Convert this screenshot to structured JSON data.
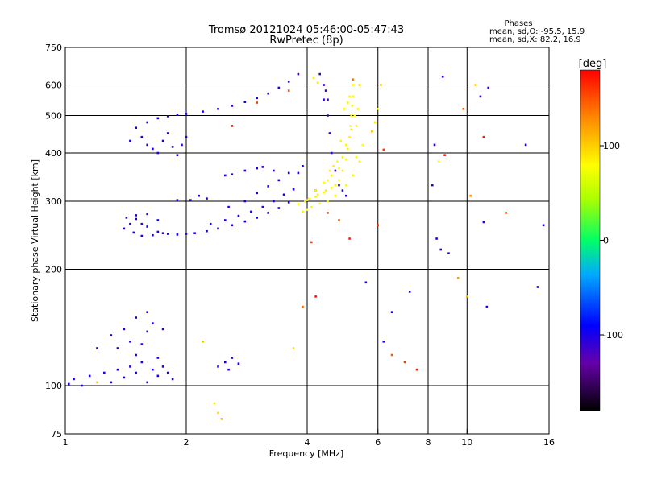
{
  "chart_data": {
    "type": "scatter",
    "title_line1": "Tromsø 20121024 05:46:00-05:47:43",
    "title_line2": "RwPretec (8p)",
    "stats": {
      "heading": "Phases",
      "line_o": "mean, sd,O: -95.5, 15.9",
      "line_x": "mean, sd,X:  82.2, 16.9"
    },
    "xlabel": "Frequency [MHz]",
    "ylabel": "Stationary phase Virtual Height [km]",
    "xscale": "log",
    "yscale": "log",
    "xlim": [
      1,
      16
    ],
    "ylim": [
      75,
      750
    ],
    "x_ticks": [
      1,
      2,
      4,
      6,
      8,
      10,
      16
    ],
    "x_tick_labels": [
      "1",
      "2",
      "4",
      "6",
      "8",
      "10",
      "16"
    ],
    "x_grid": [
      2,
      4,
      6,
      8,
      10
    ],
    "y_ticks": [
      75,
      100,
      200,
      300,
      400,
      500,
      600,
      750
    ],
    "y_tick_labels": [
      "75",
      "100",
      "200",
      "300",
      "400",
      "500",
      "600",
      "750"
    ],
    "y_grid": [
      100,
      200,
      300,
      400,
      500,
      600
    ],
    "colorbar": {
      "label": "[deg]",
      "range": [
        -180,
        180
      ],
      "ticks": [
        100,
        0,
        -100
      ],
      "tick_labels": [
        "100",
        "0",
        "-100"
      ]
    },
    "series": [
      {
        "mode": "O",
        "points": [
          [
            1.4,
            255,
            -100
          ],
          [
            1.45,
            262,
            -105
          ],
          [
            1.5,
            270,
            -98
          ],
          [
            1.55,
            262,
            -110
          ],
          [
            1.6,
            258,
            -95
          ],
          [
            1.7,
            250,
            -102
          ],
          [
            1.8,
            247,
            -100
          ],
          [
            1.9,
            246,
            -96
          ],
          [
            2.0,
            247,
            -104
          ],
          [
            2.1,
            248,
            -100
          ],
          [
            2.25,
            251,
            -98
          ],
          [
            2.4,
            255,
            -102
          ],
          [
            2.6,
            260,
            -100
          ],
          [
            2.8,
            266,
            -96
          ],
          [
            3.0,
            272,
            -92
          ],
          [
            3.2,
            280,
            -100
          ],
          [
            3.4,
            288,
            -95
          ],
          [
            3.6,
            298,
            -98
          ],
          [
            1.42,
            272,
            -110
          ],
          [
            1.5,
            276,
            -102
          ],
          [
            1.6,
            278,
            -98
          ],
          [
            1.7,
            268,
            -94
          ],
          [
            1.48,
            249,
            -96
          ],
          [
            1.55,
            244,
            -100
          ],
          [
            1.65,
            245,
            -102
          ],
          [
            1.75,
            248,
            -108
          ],
          [
            2.3,
            262,
            -92
          ],
          [
            2.5,
            268,
            -100
          ],
          [
            2.7,
            275,
            -104
          ],
          [
            2.9,
            282,
            -98
          ],
          [
            3.1,
            290,
            -110
          ],
          [
            3.3,
            300,
            -102
          ],
          [
            3.5,
            312,
            -100
          ],
          [
            3.7,
            322,
            -104
          ],
          [
            2.55,
            290,
            -98
          ],
          [
            2.8,
            300,
            -100
          ],
          [
            3.0,
            315,
            -102
          ],
          [
            3.2,
            328,
            -104
          ],
          [
            3.4,
            340,
            -100
          ],
          [
            3.6,
            355,
            -98
          ],
          [
            2.5,
            350,
            -100
          ],
          [
            2.6,
            352,
            -105
          ],
          [
            2.8,
            360,
            -100
          ],
          [
            3.0,
            365,
            -98
          ],
          [
            3.1,
            368,
            -102
          ],
          [
            3.3,
            360,
            -100
          ],
          [
            1.6,
            480,
            -100
          ],
          [
            1.7,
            492,
            -102
          ],
          [
            1.8,
            498,
            -98
          ],
          [
            1.9,
            502,
            -100
          ],
          [
            2.0,
            505,
            -104
          ],
          [
            2.2,
            512,
            -100
          ],
          [
            2.4,
            520,
            -98
          ],
          [
            2.6,
            530,
            -102
          ],
          [
            2.8,
            542,
            -100
          ],
          [
            3.0,
            555,
            -100
          ],
          [
            3.2,
            570,
            -102
          ],
          [
            3.4,
            590,
            -104
          ],
          [
            3.6,
            612,
            -110
          ],
          [
            3.8,
            640,
            -115
          ],
          [
            1.5,
            465,
            -100
          ],
          [
            1.55,
            440,
            -102
          ],
          [
            1.6,
            420,
            -98
          ],
          [
            1.65,
            410,
            -100
          ],
          [
            1.7,
            400,
            -104
          ],
          [
            1.75,
            430,
            -96
          ],
          [
            1.8,
            450,
            -100
          ],
          [
            1.85,
            415,
            -102
          ],
          [
            1.9,
            395,
            -100
          ],
          [
            1.95,
            420,
            -104
          ],
          [
            2.0,
            440,
            -98
          ],
          [
            1.45,
            430,
            -96
          ],
          [
            4.3,
            640,
            -110
          ],
          [
            4.4,
            600,
            -112
          ],
          [
            4.5,
            550,
            -110
          ],
          [
            4.5,
            500,
            -108
          ],
          [
            4.55,
            450,
            -106
          ],
          [
            4.6,
            400,
            -104
          ],
          [
            4.7,
            360,
            -110
          ],
          [
            4.8,
            330,
            -112
          ],
          [
            4.9,
            320,
            -108
          ],
          [
            5.0,
            310,
            -106
          ],
          [
            4.4,
            550,
            -110
          ],
          [
            4.45,
            580,
            -112
          ],
          [
            1.3,
            135,
            -100
          ],
          [
            1.35,
            125,
            -102
          ],
          [
            1.4,
            140,
            -98
          ],
          [
            1.45,
            130,
            -100
          ],
          [
            1.5,
            120,
            -104
          ],
          [
            1.55,
            128,
            -100
          ],
          [
            1.6,
            138,
            -98
          ],
          [
            1.65,
            145,
            -100
          ],
          [
            1.7,
            118,
            -102
          ],
          [
            1.35,
            110,
            -100
          ],
          [
            1.4,
            105,
            -98
          ],
          [
            1.45,
            112,
            -100
          ],
          [
            1.5,
            108,
            -96
          ],
          [
            1.55,
            115,
            -100
          ],
          [
            1.6,
            102,
            -104
          ],
          [
            1.65,
            110,
            -100
          ],
          [
            1.7,
            106,
            -98
          ],
          [
            1.75,
            112,
            -102
          ],
          [
            1.8,
            108,
            -100
          ],
          [
            1.85,
            104,
            -98
          ],
          [
            1.3,
            102,
            -100
          ],
          [
            1.25,
            108,
            -104
          ],
          [
            1.05,
            104,
            -100
          ],
          [
            1.1,
            100,
            -98
          ],
          [
            1.15,
            106,
            -102
          ],
          [
            1.02,
            101,
            -100
          ],
          [
            2.4,
            112,
            -100
          ],
          [
            2.5,
            115,
            -98
          ],
          [
            2.6,
            118,
            -102
          ],
          [
            2.7,
            114,
            -100
          ],
          [
            2.55,
            110,
            -104
          ],
          [
            1.5,
            150,
            -100
          ],
          [
            1.6,
            155,
            -98
          ],
          [
            1.75,
            140,
            -102
          ],
          [
            1.2,
            125,
            -100
          ],
          [
            6.2,
            130,
            -100
          ],
          [
            6.5,
            155,
            -102
          ],
          [
            7.2,
            175,
            -98
          ],
          [
            8.3,
            420,
            -100
          ],
          [
            8.2,
            330,
            -104
          ],
          [
            8.4,
            240,
            -100
          ],
          [
            8.6,
            225,
            -98
          ],
          [
            9.0,
            220,
            -102
          ],
          [
            11.0,
            265,
            -100
          ],
          [
            11.2,
            160,
            -104
          ],
          [
            14.0,
            420,
            -100
          ],
          [
            15.0,
            180,
            -98
          ],
          [
            15.5,
            260,
            -102
          ],
          [
            8.7,
            630,
            -100
          ],
          [
            10.8,
            560,
            -106
          ],
          [
            11.3,
            590,
            -104
          ],
          [
            5.6,
            185,
            -100
          ],
          [
            4.2,
            320,
            -104
          ],
          [
            2.05,
            302,
            -96
          ],
          [
            1.9,
            302,
            -102
          ],
          [
            2.15,
            310,
            -100
          ],
          [
            2.25,
            305,
            -98
          ],
          [
            3.8,
            355,
            -100
          ],
          [
            3.9,
            370,
            -96
          ]
        ]
      },
      {
        "mode": "X",
        "points": [
          [
            3.8,
            295,
            80
          ],
          [
            4.0,
            302,
            82
          ],
          [
            4.2,
            308,
            85
          ],
          [
            4.4,
            316,
            80
          ],
          [
            4.6,
            325,
            78
          ],
          [
            4.8,
            340,
            82
          ],
          [
            4.9,
            360,
            85
          ],
          [
            5.0,
            385,
            80
          ],
          [
            5.05,
            410,
            82
          ],
          [
            5.1,
            440,
            84
          ],
          [
            5.12,
            470,
            80
          ],
          [
            5.15,
            500,
            82
          ],
          [
            5.18,
            530,
            84
          ],
          [
            5.2,
            560,
            80
          ],
          [
            5.2,
            600,
            82
          ],
          [
            4.2,
            320,
            80
          ],
          [
            4.4,
            335,
            82
          ],
          [
            4.6,
            350,
            84
          ],
          [
            4.8,
            365,
            80
          ],
          [
            4.9,
            390,
            85
          ],
          [
            5.0,
            420,
            82
          ],
          [
            4.5,
            340,
            80
          ],
          [
            4.7,
            330,
            84
          ],
          [
            5.1,
            560,
            82
          ],
          [
            5.3,
            470,
            86
          ],
          [
            5.4,
            600,
            90
          ],
          [
            4.1,
            290,
            80
          ],
          [
            4.0,
            285,
            82
          ],
          [
            3.9,
            282,
            84
          ],
          [
            4.3,
            296,
            80
          ],
          [
            4.5,
            300,
            82
          ],
          [
            4.7,
            310,
            85
          ],
          [
            5.0,
            330,
            80
          ],
          [
            5.2,
            350,
            84
          ],
          [
            5.4,
            380,
            82
          ],
          [
            5.5,
            420,
            80
          ],
          [
            5.3,
            390,
            82
          ],
          [
            4.95,
            520,
            80
          ],
          [
            5.05,
            540,
            84
          ],
          [
            4.85,
            430,
            82
          ],
          [
            4.75,
            380,
            80
          ],
          [
            4.65,
            370,
            84
          ],
          [
            4.55,
            360,
            82
          ],
          [
            5.15,
            460,
            86
          ],
          [
            5.25,
            500,
            80
          ],
          [
            5.35,
            520,
            82
          ],
          [
            4.05,
            305,
            80
          ],
          [
            4.25,
            312,
            84
          ],
          [
            4.45,
            320,
            86
          ],
          [
            3.95,
            300,
            88
          ],
          [
            2.35,
            90,
            90
          ],
          [
            2.4,
            85,
            100
          ],
          [
            2.45,
            82,
            110
          ],
          [
            1.2,
            102,
            100
          ],
          [
            6.5,
            120,
            150
          ],
          [
            7.0,
            115,
            160
          ],
          [
            7.5,
            110,
            170
          ],
          [
            8.8,
            395,
            170
          ],
          [
            6.2,
            408,
            160
          ],
          [
            5.2,
            620,
            140
          ],
          [
            11.0,
            440,
            170
          ],
          [
            12.5,
            280,
            150
          ],
          [
            10.0,
            170,
            110
          ],
          [
            9.5,
            190,
            120
          ],
          [
            4.8,
            268,
            150
          ],
          [
            5.1,
            240,
            170
          ],
          [
            4.1,
            235,
            160
          ],
          [
            3.9,
            160,
            140
          ],
          [
            3.7,
            125,
            90
          ],
          [
            2.2,
            130,
            110
          ],
          [
            4.2,
            170,
            175
          ],
          [
            5.8,
            455,
            110
          ],
          [
            5.9,
            480,
            90
          ],
          [
            6.0,
            520,
            80
          ],
          [
            6.1,
            600,
            100
          ],
          [
            4.15,
            625,
            85
          ],
          [
            4.25,
            608,
            90
          ],
          [
            3.6,
            580,
            150
          ],
          [
            3.0,
            540,
            160
          ],
          [
            2.6,
            470,
            170
          ],
          [
            4.5,
            280,
            150
          ],
          [
            6.0,
            260,
            160
          ],
          [
            10.2,
            310,
            130
          ],
          [
            9.8,
            520,
            150
          ],
          [
            10.5,
            600,
            100
          ],
          [
            8.5,
            380,
            80
          ]
        ]
      }
    ]
  }
}
